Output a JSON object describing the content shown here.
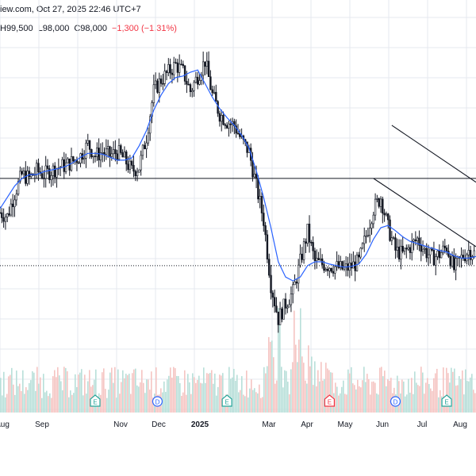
{
  "header": {
    "source_fragment": "iew.com, Oct 27, 2025 22:46 UTC+7",
    "high": "H99,500",
    "low": "L98,000",
    "close": "C98,000",
    "change": "−1,300 (−1.31%)"
  },
  "chart_data": {
    "type": "line",
    "subtype": "candlestick-with-moving-average-and-volume",
    "title": "",
    "xlabel": "",
    "ylabel": "",
    "x_tick_labels": [
      "Aug",
      "Sep",
      "Nov",
      "Dec",
      "2025",
      "Mar",
      "Apr",
      "May",
      "Jun",
      "Jul",
      "Aug"
    ],
    "grid": true,
    "series": [
      {
        "kind": "price-close",
        "values": [
          108000,
          107500,
          110500,
          113000,
          112500,
          113500,
          113000,
          113500,
          114000,
          114200,
          114800,
          115500,
          117000,
          115500,
          116000,
          115500,
          116000,
          115000,
          113500,
          114000,
          118000,
          124000,
          125500,
          126500,
          127500,
          126500,
          124000,
          126000,
          128000,
          123500,
          121000,
          120000,
          119500,
          117500,
          116000,
          111500,
          107000,
          98500,
          94000,
          96000,
          97500,
          101500,
          105500,
          101500,
          101200,
          101000,
          100800,
          100500,
          100900,
          101500,
          105000,
          108500,
          110000,
          106000,
          103000,
          102500,
          103500,
          104500,
          103000,
          102000,
          102500,
          103500,
          100500,
          102000,
          103000,
          102500
        ]
      },
      {
        "kind": "moving-average",
        "values": [
          108500,
          110000,
          111500,
          112500,
          113000,
          113000,
          113400,
          113600,
          113800,
          114100,
          114600,
          115300,
          115800,
          115800,
          115700,
          115300,
          114900,
          114900,
          115200,
          116800,
          118800,
          121500,
          123500,
          125000,
          125800,
          126000,
          126500,
          126800,
          125000,
          123200,
          121700,
          120500,
          119500,
          118200,
          116500,
          113500,
          110000,
          106000,
          101500,
          99500,
          99000,
          99500,
          101000,
          101500,
          101500,
          101200,
          101000,
          100800,
          100900,
          101200,
          102500,
          104500,
          106000,
          106300,
          105600,
          104800,
          104200,
          103900,
          103600,
          103300,
          103000,
          102800,
          102300,
          102000,
          102000,
          102200
        ]
      }
    ],
    "horizontal_lines": [
      {
        "style": "solid",
        "value": 112500
      },
      {
        "style": "dotted",
        "value": 101000
      }
    ],
    "trend_channel": {
      "line1": [
        {
          "x": 53.5,
          "y": 119500
        },
        {
          "x": 65,
          "y": 112000
        }
      ],
      "line2": [
        {
          "x": 51,
          "y": 112500
        },
        {
          "x": 65,
          "y": 103500
        }
      ]
    },
    "event_markers": [
      {
        "letter": "E",
        "x": 13,
        "color": "#26a69a"
      },
      {
        "letter": "D",
        "x": 21.5,
        "color": "#2962ff"
      },
      {
        "letter": "E",
        "x": 31,
        "color": "#26a69a"
      },
      {
        "letter": "E",
        "x": 45,
        "color": "#f23645"
      },
      {
        "letter": "D",
        "x": 54,
        "color": "#2962ff"
      },
      {
        "letter": "E",
        "x": 61,
        "color": "#26a69a"
      }
    ],
    "volume": "relative histogram",
    "colors": {
      "up": "#26a69a",
      "down": "#ef5350",
      "ma": "#2962ff",
      "grid": "#e6e9ef",
      "level": "#131722",
      "vol_up": "#b8dfd9",
      "vol_down": "#f5c4c2"
    }
  }
}
